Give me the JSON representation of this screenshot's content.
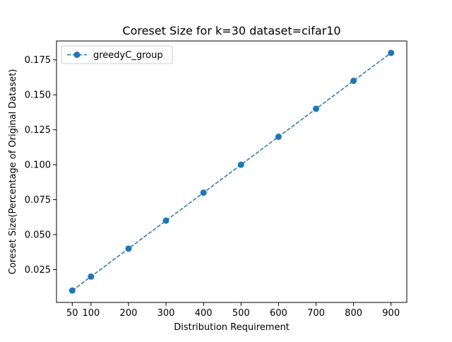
{
  "chart_data": {
    "type": "line",
    "title": "Coreset Size for k=30 dataset=cifar10",
    "xlabel": "Distribution Requirement",
    "ylabel": "Coreset Size(Percentage of Original Dataset)",
    "xlim": [
      8,
      942
    ],
    "ylim": [
      0.0015,
      0.1885
    ],
    "xticks": [
      50,
      100,
      200,
      300,
      400,
      500,
      600,
      700,
      800,
      900
    ],
    "xtick_labels": [
      "50",
      "100",
      "200",
      "300",
      "400",
      "500",
      "600",
      "700",
      "800",
      "900"
    ],
    "yticks": [
      0.025,
      0.05,
      0.075,
      0.1,
      0.125,
      0.15,
      0.175
    ],
    "ytick_labels": [
      "0.025",
      "0.050",
      "0.075",
      "0.100",
      "0.125",
      "0.150",
      "0.175"
    ],
    "grid": false,
    "legend_position": "top-left",
    "series": [
      {
        "name": "greedyC_group",
        "color": "#1f77b4",
        "line_style": "dashed",
        "marker": "circle",
        "x": [
          50,
          100,
          200,
          300,
          400,
          500,
          600,
          700,
          800,
          900
        ],
        "y": [
          0.01,
          0.02,
          0.04,
          0.06,
          0.08,
          0.1,
          0.12,
          0.14,
          0.16,
          0.18
        ]
      }
    ]
  }
}
